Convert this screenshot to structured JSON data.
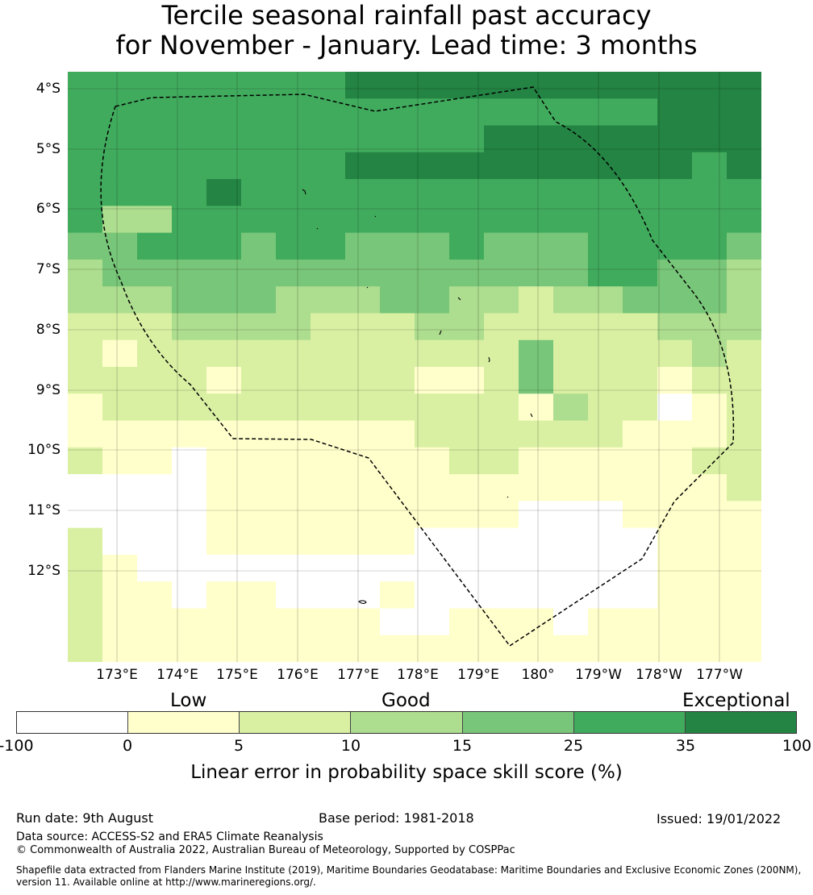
{
  "header": {
    "title_line1": "Tercile seasonal rainfall past accuracy",
    "title_line2": "for November - January. Lead time: 3 months"
  },
  "map": {
    "lat_labels": [
      "4°S",
      "5°S",
      "6°S",
      "7°S",
      "8°S",
      "9°S",
      "10°S",
      "11°S",
      "12°S"
    ],
    "lon_labels": [
      "173°E",
      "174°E",
      "175°E",
      "176°E",
      "177°E",
      "178°E",
      "179°E",
      "180°",
      "179°W",
      "178°W",
      "177°W"
    ],
    "boundary_style": "dashed black line (EEZ boundary)",
    "grid": "on",
    "skill_grid_classes": [
      "55555555666666666666",
      "55555555555555555666",
      "55555555555566666666",
      "55555555666666666656",
      "55556555555555555555",
      "53355555555555555555",
      "44555455444544455554",
      "34444444444444455443",
      "33344433344332334443",
      "22233332223322222333",
      "21222222222224222232",
      "22221222221124222122",
      "12222222222221322012",
      "11111111112222221112",
      "21101111111221111122",
      "00001111111111111112",
      "00001111111110001111",
      "20001111110000000111",
      "21000000000000000111",
      "21101100010000000111",
      "21111111100111011111",
      "21111111111111111111"
    ]
  },
  "legend": {
    "categories": [
      "Low",
      "Good",
      "Exceptional"
    ],
    "bins": [
      {
        "from": "-100",
        "to": "0",
        "color": "#ffffff"
      },
      {
        "from": "0",
        "to": "5",
        "color": "#ffffcc"
      },
      {
        "from": "5",
        "to": "10",
        "color": "#d9f0a3"
      },
      {
        "from": "10",
        "to": "15",
        "color": "#addd8e"
      },
      {
        "from": "15",
        "to": "25",
        "color": "#78c679"
      },
      {
        "from": "25",
        "to": "35",
        "color": "#41ab5d"
      },
      {
        "from": "35",
        "to": "100",
        "color": "#238443"
      }
    ],
    "ticks": [
      "-100",
      "0",
      "5",
      "10",
      "15",
      "25",
      "35",
      "100"
    ],
    "label": "Linear error in probability space skill score (%)"
  },
  "footer": {
    "run_date": "Run date: 9th August",
    "base_period": "Base period: 1981-2018",
    "issued": "Issued: 19/01/2022",
    "data_source": "Data source: ACCESS-S2 and ERA5 Climate Reanalysis",
    "copyright": "© Commonwealth of Australia 2022, Australian Bureau of Meteorology, Supported by COSPPac",
    "shapefile_line1": "Shapefile data extracted from Flanders Marine Institute (2019), Maritime Boundaries Geodatabase: Maritime Boundaries and Exclusive Economic Zones (200NM),",
    "shapefile_line2": "version 11. Available online at http://www.marineregions.org/."
  }
}
